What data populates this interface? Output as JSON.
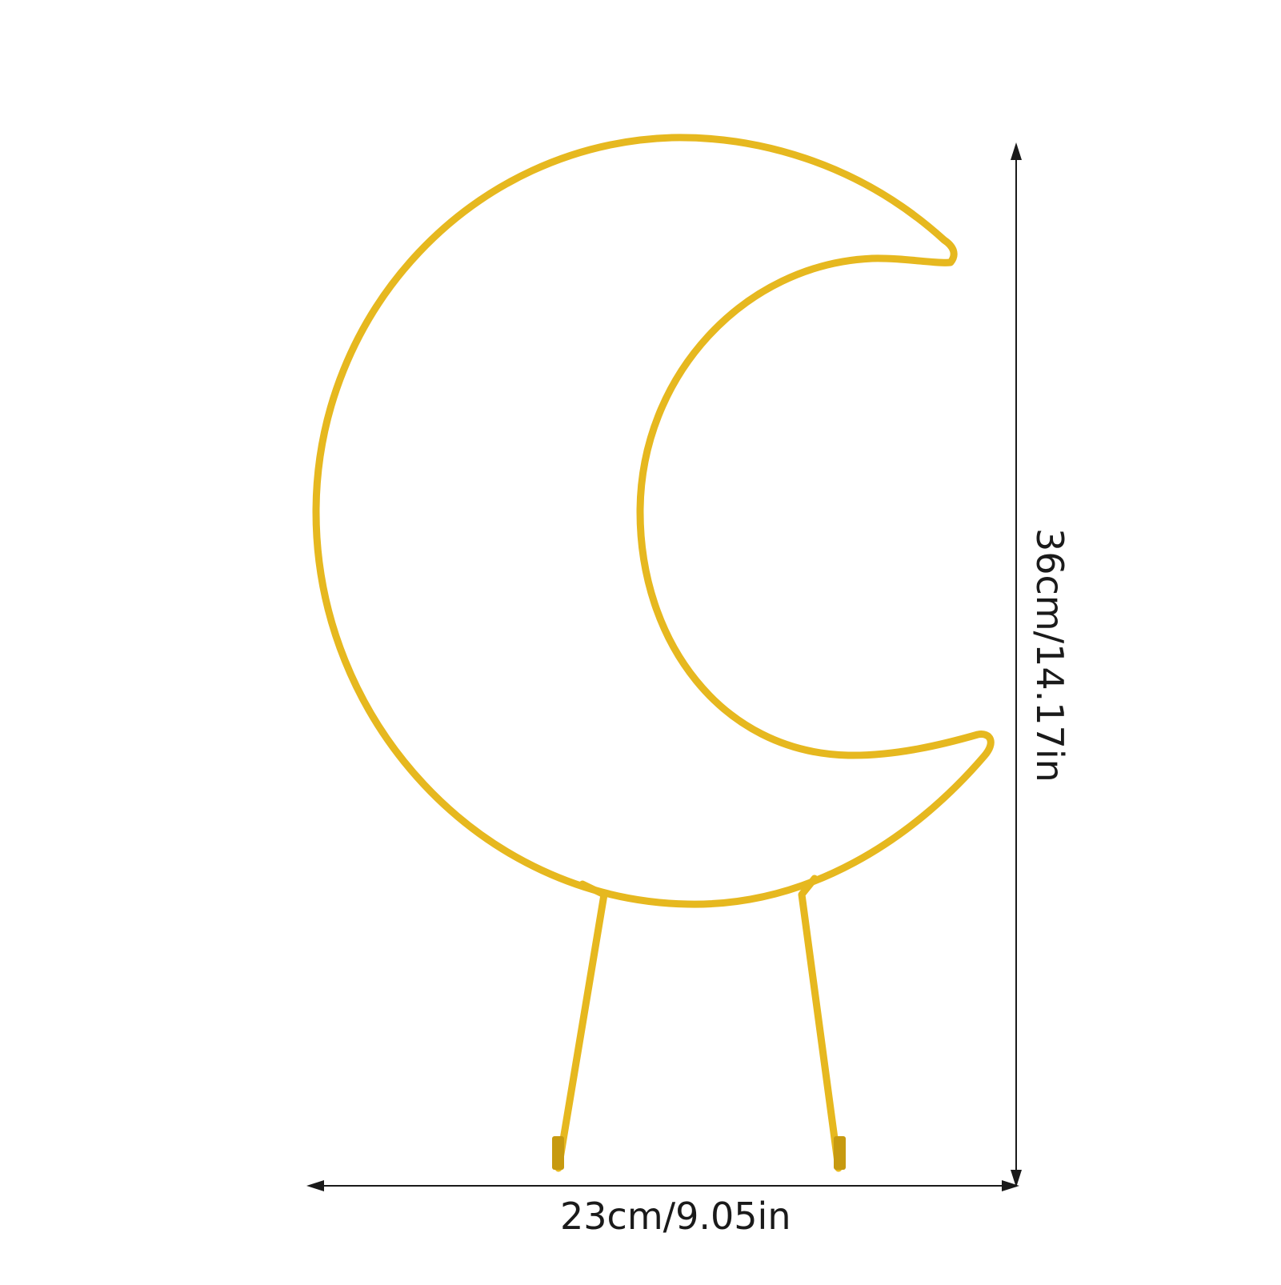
{
  "product": {
    "color": "#e6b81f",
    "shadow_color": "#c79a10"
  },
  "dimensions": {
    "width_label": "23cm/9.05in",
    "height_label": "36cm/14.17in"
  }
}
